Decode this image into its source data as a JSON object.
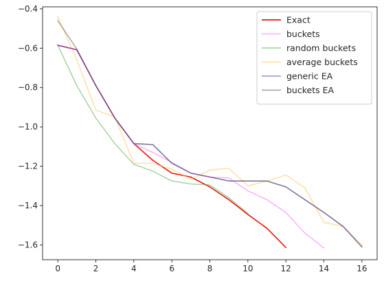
{
  "chart_data": {
    "type": "line",
    "title": "",
    "xlabel": "",
    "ylabel": "",
    "xlim": [
      -0.8,
      16.8
    ],
    "ylim": [
      -1.675,
      -0.39
    ],
    "xticks": [
      0,
      2,
      4,
      6,
      8,
      10,
      12,
      14,
      16
    ],
    "xtick_labels": [
      "0",
      "2",
      "4",
      "6",
      "8",
      "10",
      "12",
      "14",
      "16"
    ],
    "yticks": [
      -0.4,
      -0.6,
      -0.8,
      -1.0,
      -1.2,
      -1.4,
      -1.6
    ],
    "ytick_labels": [
      "−0.4",
      "−0.6",
      "−0.8",
      "−1.0",
      "−1.2",
      "−1.4",
      "−1.6"
    ],
    "legend_position": "top-right",
    "series": [
      {
        "name": "Exact",
        "color": "#e8120a",
        "alpha": 1.0,
        "x": [
          0,
          1,
          2,
          3,
          4,
          5,
          6,
          7,
          8,
          9,
          10,
          11,
          12
        ],
        "y": [
          -0.585,
          -0.608,
          -0.79,
          -0.955,
          -1.085,
          -1.17,
          -1.235,
          -1.255,
          -1.305,
          -1.37,
          -1.445,
          -1.515,
          -1.613
        ]
      },
      {
        "name": "buckets",
        "color": "#ff66ff",
        "alpha": 0.5,
        "x": [
          0,
          1,
          2,
          3,
          4,
          5,
          6,
          7,
          8,
          9,
          10,
          11,
          12,
          13,
          14
        ],
        "y": [
          -0.585,
          -0.608,
          -0.79,
          -0.955,
          -1.085,
          -1.13,
          -1.18,
          -1.235,
          -1.255,
          -1.26,
          -1.325,
          -1.37,
          -1.435,
          -1.54,
          -1.615
        ]
      },
      {
        "name": "random buckets",
        "color": "#5aab4c",
        "alpha": 0.5,
        "x": [
          0,
          1,
          2,
          3,
          4,
          5,
          6,
          7,
          8,
          9,
          10
        ],
        "y": [
          -0.585,
          -0.79,
          -0.955,
          -1.085,
          -1.19,
          -1.225,
          -1.275,
          -1.29,
          -1.295,
          -1.36,
          -1.44
        ]
      },
      {
        "name": "average buckets",
        "color": "#ffc45c",
        "alpha": 0.5,
        "x": [
          0,
          1,
          2,
          3,
          4,
          5,
          6,
          7,
          8,
          9,
          10,
          11,
          12,
          13,
          14,
          15,
          16
        ],
        "y": [
          -0.44,
          -0.66,
          -0.915,
          -0.95,
          -1.185,
          -1.185,
          -1.215,
          -1.265,
          -1.22,
          -1.21,
          -1.3,
          -1.275,
          -1.245,
          -1.31,
          -1.485,
          -1.505,
          -1.6
        ]
      },
      {
        "name": "generic EA",
        "color": "#4b38bd",
        "alpha": 0.5,
        "x": [
          0,
          1,
          2,
          3,
          4,
          5,
          6,
          7,
          8,
          9,
          10,
          11,
          12,
          13,
          14,
          15,
          16
        ],
        "y": [
          -0.585,
          -0.608,
          -0.79,
          -0.955,
          -1.085,
          -1.09,
          -1.185,
          -1.235,
          -1.255,
          -1.275,
          -1.275,
          -1.275,
          -1.305,
          -1.37,
          -1.435,
          -1.505,
          -1.61
        ]
      },
      {
        "name": "buckets EA",
        "color": "#595959",
        "alpha": 0.5,
        "x": [
          0,
          1,
          2,
          3,
          4,
          5,
          6,
          7,
          8,
          9,
          10,
          11,
          12,
          13,
          14,
          15,
          16
        ],
        "y": [
          -0.46,
          -0.605,
          -0.79,
          -0.955,
          -1.085,
          -1.09,
          -1.185,
          -1.235,
          -1.255,
          -1.275,
          -1.275,
          -1.275,
          -1.305,
          -1.37,
          -1.435,
          -1.505,
          -1.61
        ]
      }
    ]
  }
}
